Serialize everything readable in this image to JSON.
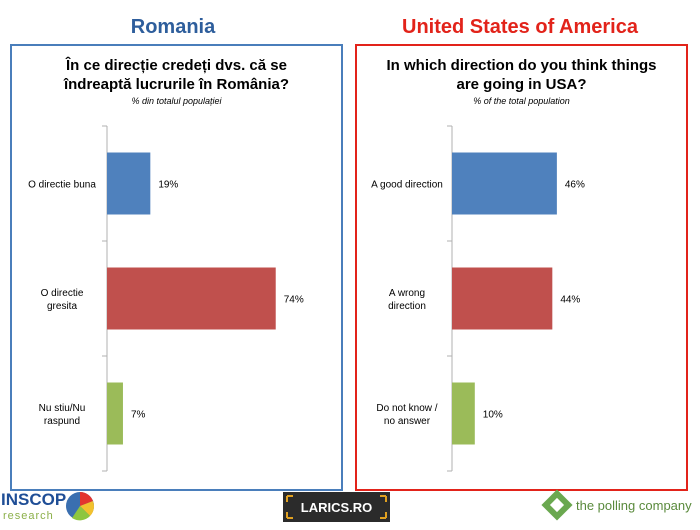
{
  "colors": {
    "blue": "#4f81bd",
    "red": "#c0504d",
    "green": "#9bbb59",
    "ro_title": "#2e5e9c",
    "us_title": "#e2231a",
    "ro_border": "#4a7ebb",
    "us_border": "#e2231a"
  },
  "romania": {
    "country": "Romania",
    "title_line1": "În ce direcție credeți dvs. că se",
    "title_line2": "îndreaptă lucrurile în România?",
    "subtitle": "% din totalul populației"
  },
  "usa": {
    "country": "United States of America",
    "title_line1": "In which direction do you think things",
    "title_line2": "are going in USA?",
    "subtitle": "% of the total population"
  },
  "chart_data": [
    {
      "type": "bar",
      "orientation": "horizontal",
      "title": "În ce direcție credeți dvs. că se îndreaptă lucrurile în România?",
      "categories": [
        [
          "O directie buna"
        ],
        [
          "O directie",
          "gresita"
        ],
        [
          "Nu stiu/Nu",
          "raspund"
        ]
      ],
      "values": [
        19,
        74,
        7
      ],
      "data_labels": [
        "19%",
        "74%",
        "7%"
      ],
      "colors": [
        "#4f81bd",
        "#c0504d",
        "#9bbb59"
      ],
      "xlim": [
        0,
        100
      ],
      "grid": false
    },
    {
      "type": "bar",
      "orientation": "horizontal",
      "title": "In which direction do you think things are going in USA?",
      "categories": [
        [
          "A good direction"
        ],
        [
          "A wrong",
          "direction"
        ],
        [
          "Do not know /",
          "no answer"
        ]
      ],
      "values": [
        46,
        44,
        10
      ],
      "data_labels": [
        "46%",
        "44%",
        "10%"
      ],
      "colors": [
        "#4f81bd",
        "#c0504d",
        "#9bbb59"
      ],
      "xlim": [
        0,
        100
      ],
      "grid": false
    }
  ],
  "logos": {
    "inscop_line1": "INSCOP",
    "inscop_line2": "research",
    "larics": "LARICS.RO",
    "polling": "the polling company"
  }
}
